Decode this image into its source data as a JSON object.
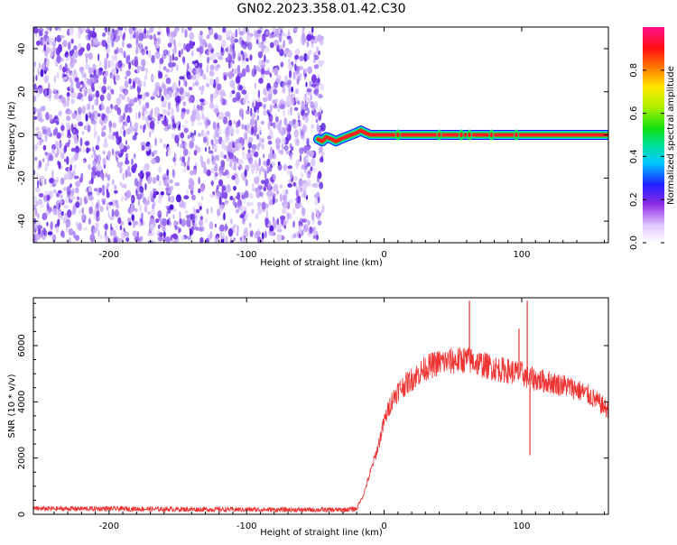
{
  "title": "GN02.2023.358.01.42.C30",
  "chart_data": [
    {
      "type": "heatmap",
      "xlabel": "Height of straight line (km)",
      "ylabel": "Frequency (Hz)",
      "xlim": [
        -255,
        163
      ],
      "ylim": [
        -50,
        50
      ],
      "x_ticks": [
        -200,
        -100,
        0,
        100
      ],
      "y_ticks": [
        -40,
        -20,
        0,
        20,
        40
      ],
      "noise_region_x": [
        -255,
        -45
      ],
      "signal_track": {
        "x": [
          -48,
          -45,
          -42,
          -38,
          -35,
          -32,
          -28,
          -24,
          -20,
          -17,
          -14,
          -10,
          0,
          163
        ],
        "y": [
          -2,
          -3,
          -1,
          -2,
          -3,
          -2,
          -1,
          0,
          1,
          2,
          1,
          0,
          0,
          0
        ]
      },
      "colorbar": {
        "label": "Normalized spectral amplitude",
        "range": [
          0,
          1
        ],
        "ticks": [
          0.0,
          0.2,
          0.4,
          0.6,
          0.8
        ]
      },
      "grid": false
    },
    {
      "type": "line",
      "xlabel": "Height of straight line (km)",
      "ylabel": "SNR (10 * v/v)",
      "xlim": [
        -255,
        163
      ],
      "ylim": [
        0,
        7700
      ],
      "x_ticks": [
        -200,
        -100,
        0,
        100
      ],
      "y_ticks": [
        0,
        2000,
        4000,
        6000
      ],
      "color": "#ee3333",
      "x": [
        -255,
        -200,
        -150,
        -100,
        -60,
        -30,
        -20,
        -15,
        -10,
        -5,
        0,
        5,
        10,
        20,
        30,
        40,
        50,
        60,
        70,
        80,
        90,
        95,
        100,
        105,
        110,
        120,
        130,
        140,
        150,
        163
      ],
      "y": [
        200,
        200,
        180,
        170,
        160,
        160,
        200,
        700,
        1500,
        2300,
        3300,
        4000,
        4400,
        4800,
        5200,
        5400,
        5450,
        5500,
        5350,
        5200,
        5100,
        5050,
        5000,
        4850,
        4800,
        4700,
        4600,
        4450,
        4200,
        3700
      ],
      "spikes": [
        {
          "x": 62,
          "y": 7600
        },
        {
          "x": 98,
          "y": 6600
        },
        {
          "x": 104,
          "y": 7600
        },
        {
          "x": 106,
          "y": 2100
        }
      ],
      "grid": false
    }
  ]
}
